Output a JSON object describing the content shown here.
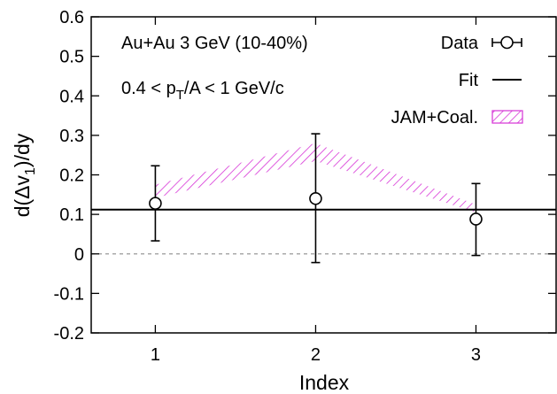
{
  "chart_data": {
    "type": "scatter",
    "xlabel": "Index",
    "ylabel": "d(Δv₁)/dy",
    "xlim": [
      0.6,
      3.5
    ],
    "ylim": [
      -0.2,
      0.6
    ],
    "x_ticks": [
      1,
      2,
      3
    ],
    "y_ticks": [
      -0.2,
      -0.1,
      0,
      0.1,
      0.2,
      0.3,
      0.4,
      0.5,
      0.6
    ],
    "x_tick_labels": [
      "1",
      "2",
      "3"
    ],
    "y_tick_labels": [
      "-0.2",
      "-0.1",
      "0",
      "0.1",
      "0.2",
      "0.3",
      "0.4",
      "0.5",
      "0.6"
    ],
    "grid": false,
    "legend_position": "top-right",
    "annotations": {
      "system": "Au+Au 3 GeV (10-40%)",
      "pt_range": "0.4 < p_T/A < 1 GeV/c"
    },
    "series": [
      {
        "name": "Data",
        "kind": "points-with-errorbars",
        "x": [
          1,
          2,
          3
        ],
        "y": [
          0.128,
          0.14,
          0.088
        ],
        "yerr_low": [
          0.095,
          0.162,
          0.092
        ],
        "yerr_high": [
          0.095,
          0.164,
          0.09
        ]
      },
      {
        "name": "Fit",
        "kind": "horizontal-line",
        "y": 0.112
      },
      {
        "name": "JAM+Coal.",
        "kind": "band",
        "x": [
          1,
          2,
          3
        ],
        "y_low": [
          0.142,
          0.235,
          0.105
        ],
        "y_high": [
          0.175,
          0.28,
          0.125
        ],
        "color": "#d633d6"
      },
      {
        "name": "",
        "kind": "reference-line",
        "y": 0,
        "color": "#999999",
        "dashed": true
      }
    ]
  }
}
